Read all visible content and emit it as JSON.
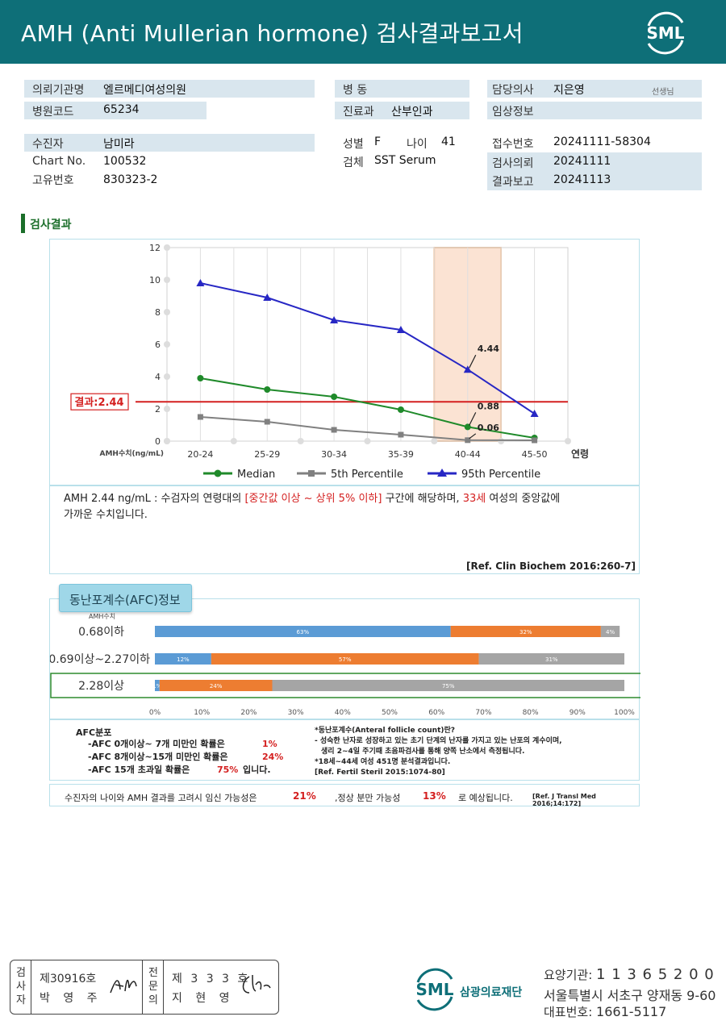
{
  "header": {
    "title": "AMH (Anti Mullerian hormone) 검사결과보고서",
    "logo_text": "SML"
  },
  "patient": {
    "institution_label": "의뢰기관명",
    "institution": "엘르메디여성의원",
    "hospital_code_label": "병원코드",
    "hospital_code": "65234",
    "patient_label": "수진자",
    "patient_name": "남미라",
    "chart_label": "Chart No.",
    "chart_no": "100532",
    "id_label": "고유번호",
    "id_no": "830323-2",
    "ward_label": "병 동",
    "ward": "",
    "dept_label": "진료과",
    "dept": "산부인과",
    "sex_label": "성별",
    "sex": "F",
    "age_label": "나이",
    "age": "41",
    "specimen_label": "검체",
    "specimen": "SST Serum",
    "doctor_label": "담당의사",
    "doctor": "지은영",
    "doctor_suffix": "선생님",
    "clinical_label": "임상정보",
    "clinical": "",
    "receipt_label": "접수번호",
    "receipt_no": "20241111-58304",
    "request_label": "검사의뢰",
    "request_date": "20241111",
    "report_label": "결과보고",
    "report_date": "20241113"
  },
  "section": {
    "title": "검사결과"
  },
  "chart_data": {
    "type": "line",
    "categories": [
      "20-24",
      "25-29",
      "30-34",
      "35-39",
      "40-44",
      "45-50"
    ],
    "ylim": [
      0,
      12
    ],
    "yticks": [
      0,
      2,
      4,
      6,
      8,
      10,
      12
    ],
    "ylabel": "AMH수치(ng/mL)",
    "xlabel": "연령",
    "series": [
      {
        "name": "Median",
        "values": [
          3.9,
          3.2,
          2.75,
          1.95,
          0.88,
          0.2
        ],
        "color": "#1f8a2a",
        "marker": "circle"
      },
      {
        "name": "5th Percentile",
        "values": [
          1.5,
          1.2,
          0.7,
          0.4,
          0.06,
          0.05
        ],
        "color": "#808080",
        "marker": "square"
      },
      {
        "name": "95th Percentile",
        "values": [
          9.8,
          8.9,
          7.5,
          6.9,
          4.44,
          1.7
        ],
        "color": "#2727c4",
        "marker": "triangle"
      }
    ],
    "highlight_category": "40-44",
    "result_line": {
      "value": 2.44,
      "label": "결과:2.44",
      "color": "#d42020"
    },
    "annotations": [
      "4.44",
      "0.88",
      "0.06"
    ]
  },
  "interpretation": {
    "prefix": "AMH  2.44 ng/mL : 수검자의 연령대의 ",
    "range": "[중간값 이상 ~ 상위 5% 이하]",
    "middle": "  구간에 해당하며, ",
    "age": "33세",
    "suffix": " 여성의 중앙값에",
    "line2": "가까운 수치입니다.",
    "ref": "[Ref. Clin Biochem 2016:260-7]"
  },
  "afc": {
    "title": "동난포계수(AFC)정보",
    "unit_label": "AMH수치",
    "rows": [
      {
        "label": "0.68이하",
        "segments": [
          63,
          32,
          4
        ],
        "texts": [
          "63%",
          "32%",
          "4%"
        ]
      },
      {
        "label": "0.69이상~2.27이하",
        "segments": [
          12,
          57,
          31
        ],
        "texts": [
          "12%",
          "57%",
          "31%"
        ]
      },
      {
        "label": "2.28이상",
        "segments": [
          1,
          24,
          75
        ],
        "texts": [
          "1%",
          "24%",
          "75%"
        ]
      }
    ],
    "colors": [
      "#5b9bd5",
      "#ed7d31",
      "#a5a5a5"
    ],
    "axis": [
      "0%",
      "10%",
      "20%",
      "30%",
      "40%",
      "50%",
      "60%",
      "70%",
      "80%",
      "90%",
      "100%"
    ],
    "dist_title": "AFC분포",
    "dist": [
      {
        "text": "-AFC  0개이상~ 7개 미만인 확률은",
        "pct": "1%"
      },
      {
        "text": "-AFC  8개이상~15개 미만인 확률은",
        "pct": "24%"
      },
      {
        "text": "-AFC  15개 초과일 확률은",
        "pct": "75%",
        "suffix": "입니다."
      }
    ],
    "def1": "*동난포계수(Anteral  follicle  count)란?",
    "def2": "- 성숙한 난자로 성장하고 있는 초기 단계의 난자를 가지고 있는 난포의 계수이며,",
    "def3": "생리 2~4일 주기때 초음파검사를 통해 양쪽 난소에서 측정됩니다.",
    "def4": "*18세~44세 여성 451명 분석결과입니다.",
    "def5": "[Ref. Fertil Steril 2015:1074-80]"
  },
  "pregnancy": {
    "t1": "수진자의  나이와 AMH 결과를 고려시 임신 가능성은",
    "p1": "21%",
    "t2": ",정상 분만 가능성",
    "p2": "13%",
    "t3": "로 예상됩니다.",
    "ref": "[Ref. J Transl Med 2016;14:172]"
  },
  "signatures": {
    "s1_vertical": [
      "검",
      "사",
      "자"
    ],
    "s1_license": "제30916호",
    "s1_name": "박 영 주",
    "s2_vertical": [
      "전",
      "문",
      "의"
    ],
    "s2_license": "제 3 3 3 호",
    "s2_name": "지 현 영"
  },
  "footer": {
    "logo_text": "SML",
    "org_name": "삼광의료재단",
    "code_label": "요양기관: ",
    "code": "1 1 3 6 5 2 0 0",
    "address": "서울특별시 서초구 양재동 9-60",
    "phone_label": "대표번호: ",
    "phone": "1661-5117"
  }
}
